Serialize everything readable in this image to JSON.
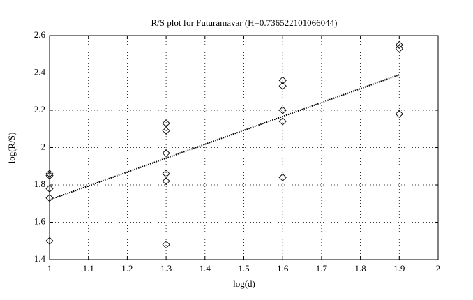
{
  "chart_data": {
    "type": "scatter",
    "title": "R/S plot for Futuramavar (H=0.736522101066044)",
    "x_label": "log(d)",
    "y_label": "log(R/S)",
    "series": [
      {
        "type": "scatter",
        "marker": "diamond",
        "color": "#000000",
        "x": [
          1,
          1,
          1,
          1,
          1,
          1.3,
          1.3,
          1.3,
          1.3,
          1.3,
          1.3,
          1.6,
          1.6,
          1.6,
          1.6,
          1.6,
          1.9,
          1.9,
          1.9
        ],
        "values": [
          1.86,
          1.85,
          1.78,
          1.73,
          1.5,
          2.13,
          2.09,
          1.97,
          1.86,
          1.82,
          1.48,
          2.36,
          2.33,
          2.2,
          2.14,
          1.84,
          2.55,
          2.53,
          2.18
        ]
      },
      {
        "type": "line",
        "style": "dotted",
        "color": "#000000",
        "x": [
          1,
          1.9
        ],
        "values": [
          1.72,
          2.39
        ]
      }
    ],
    "xlim": [
      1,
      2
    ],
    "xticks": [
      1,
      1.1,
      1.2,
      1.3,
      1.4,
      1.5,
      1.6,
      1.7,
      1.8,
      1.9,
      2
    ],
    "ylim": [
      1.4,
      2.6
    ],
    "yticks": [
      1.4,
      1.6,
      1.8,
      2,
      2.2,
      2.4,
      2.6
    ],
    "grid": true
  }
}
